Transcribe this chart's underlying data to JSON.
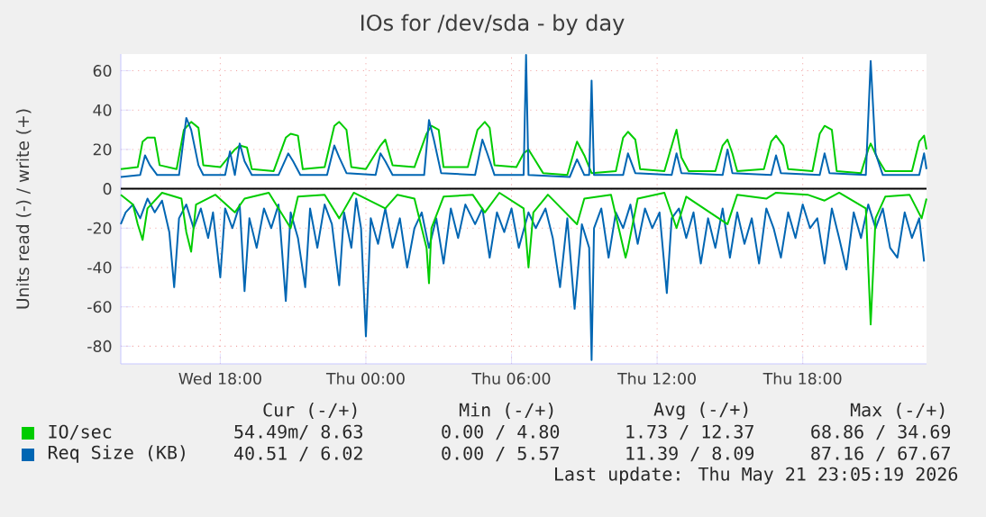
{
  "chart_data": {
    "type": "line",
    "title": "IOs for /dev/sda - by day",
    "ylabel": "Units read (-) / write (+)",
    "xlim": [
      "2026-05-20T13:54",
      "2026-05-21T23:06"
    ],
    "ylim": [
      -89,
      68.5
    ],
    "xticks": [
      {
        "value": "2026-05-20T18:00",
        "label": "Wed 18:00"
      },
      {
        "value": "2026-05-21T00:00",
        "label": "Thu 00:00"
      },
      {
        "value": "2026-05-21T06:00",
        "label": "Thu 06:00"
      },
      {
        "value": "2026-05-21T12:00",
        "label": "Thu 12:00"
      },
      {
        "value": "2026-05-21T18:00",
        "label": "Thu 18:00"
      }
    ],
    "yticks": [
      -80,
      -60,
      -40,
      -20,
      0,
      20,
      40,
      60
    ],
    "grid": true,
    "legend": "bottom",
    "marker": "none",
    "line_style": "solid",
    "ref_lines": [
      {
        "axis": "y",
        "value": 0,
        "color": "#000000"
      }
    ],
    "series": [
      {
        "color": "#0066b3",
        "x": [
          "2026-05-20T13:54",
          "2026-05-20T14:06",
          "2026-05-20T14:24",
          "2026-05-20T14:42",
          "2026-05-20T15:00",
          "2026-05-20T15:18",
          "2026-05-20T15:36",
          "2026-05-20T15:54",
          "2026-05-20T16:06",
          "2026-05-20T16:18",
          "2026-05-20T16:36",
          "2026-05-20T16:54",
          "2026-05-20T17:12",
          "2026-05-20T17:30",
          "2026-05-20T17:42",
          "2026-05-20T18:00",
          "2026-05-20T18:12",
          "2026-05-20T18:30",
          "2026-05-20T18:48",
          "2026-05-20T19:00",
          "2026-05-20T19:12",
          "2026-05-20T19:30",
          "2026-05-20T19:48",
          "2026-05-20T20:06",
          "2026-05-20T20:24",
          "2026-05-20T20:42",
          "2026-05-20T20:54",
          "2026-05-20T21:12",
          "2026-05-20T21:30",
          "2026-05-20T21:42",
          "2026-05-20T22:00",
          "2026-05-20T22:18",
          "2026-05-20T22:36",
          "2026-05-20T22:54",
          "2026-05-20T23:06",
          "2026-05-20T23:24",
          "2026-05-20T23:36",
          "2026-05-20T23:48",
          "2026-05-21T00:00",
          "2026-05-21T00:12",
          "2026-05-21T00:30",
          "2026-05-21T00:48",
          "2026-05-21T01:06",
          "2026-05-21T01:24",
          "2026-05-21T01:42",
          "2026-05-21T02:00",
          "2026-05-21T02:18",
          "2026-05-21T02:36",
          "2026-05-21T02:54",
          "2026-05-21T03:12",
          "2026-05-21T03:30",
          "2026-05-21T03:48",
          "2026-05-21T04:06",
          "2026-05-21T04:30",
          "2026-05-21T04:48",
          "2026-05-21T05:06",
          "2026-05-21T05:24",
          "2026-05-21T05:42",
          "2026-05-21T06:00",
          "2026-05-21T06:18",
          "2026-05-21T06:42",
          "2026-05-21T07:00",
          "2026-05-21T07:24",
          "2026-05-21T07:42",
          "2026-05-21T08:00",
          "2026-05-21T08:18",
          "2026-05-21T08:36",
          "2026-05-21T08:54",
          "2026-05-21T09:12",
          "2026-05-21T09:18",
          "2026-05-21T09:24",
          "2026-05-21T09:42",
          "2026-05-21T10:00",
          "2026-05-21T10:18",
          "2026-05-21T10:36",
          "2026-05-21T10:54",
          "2026-05-21T11:12",
          "2026-05-21T11:30",
          "2026-05-21T11:48",
          "2026-05-21T12:06",
          "2026-05-21T12:24",
          "2026-05-21T12:36",
          "2026-05-21T12:54",
          "2026-05-21T13:12",
          "2026-05-21T13:30",
          "2026-05-21T13:48",
          "2026-05-21T14:06",
          "2026-05-21T14:24",
          "2026-05-21T14:42",
          "2026-05-21T15:00",
          "2026-05-21T15:18",
          "2026-05-21T15:36",
          "2026-05-21T15:54",
          "2026-05-21T16:12",
          "2026-05-21T16:30",
          "2026-05-21T16:48",
          "2026-05-21T17:06",
          "2026-05-21T17:24",
          "2026-05-21T17:42",
          "2026-05-21T18:00",
          "2026-05-21T18:18",
          "2026-05-21T18:36",
          "2026-05-21T18:54",
          "2026-05-21T19:12",
          "2026-05-21T19:30",
          "2026-05-21T19:48",
          "2026-05-21T20:06",
          "2026-05-21T20:24",
          "2026-05-21T20:42",
          "2026-05-21T21:00",
          "2026-05-21T21:18",
          "2026-05-21T21:36",
          "2026-05-21T21:54",
          "2026-05-21T22:12",
          "2026-05-21T22:30",
          "2026-05-21T22:48",
          "2026-05-21T23:00"
        ],
        "values": [
          -18,
          -12,
          -8,
          -15,
          -5,
          -12,
          -6,
          -22,
          -50,
          -15,
          -8,
          -20,
          -10,
          -25,
          -12,
          -45,
          -10,
          -20,
          -8,
          -52,
          -15,
          -30,
          -10,
          -20,
          -8,
          -57,
          -12,
          -25,
          -50,
          -10,
          -30,
          -8,
          -18,
          -49,
          -12,
          -30,
          -5,
          -20,
          -75,
          -15,
          -28,
          -10,
          -30,
          -15,
          -40,
          -20,
          -12,
          -30,
          -15,
          -38,
          -10,
          -25,
          -8,
          -18,
          -10,
          -35,
          -12,
          -22,
          -10,
          -30,
          -12,
          -20,
          -10,
          -25,
          -50,
          -15,
          -61,
          -18,
          -30,
          -87,
          -20,
          -10,
          -35,
          -12,
          -20,
          -8,
          -28,
          -10,
          -20,
          -12,
          -53,
          -15,
          -10,
          -25,
          -12,
          -38,
          -15,
          -30,
          -10,
          -35,
          -12,
          -28,
          -15,
          -38,
          -10,
          -20,
          -35,
          -12,
          -25,
          -8,
          -20,
          -15,
          -38,
          -10,
          -25,
          -41,
          -12,
          -25,
          -8,
          -20,
          -10,
          -30,
          -35,
          -12,
          -25,
          -15,
          -37
        ]
      },
      {
        "color": "#00cc00",
        "x": [
          "2026-05-20T13:54",
          "2026-05-20T14:24",
          "2026-05-20T14:36",
          "2026-05-20T14:48",
          "2026-05-20T15:00",
          "2026-05-20T15:36",
          "2026-05-20T16:24",
          "2026-05-20T16:36",
          "2026-05-20T16:48",
          "2026-05-20T17:00",
          "2026-05-20T17:48",
          "2026-05-20T18:36",
          "2026-05-20T19:00",
          "2026-05-20T20:00",
          "2026-05-20T20:54",
          "2026-05-20T21:12",
          "2026-05-20T22:18",
          "2026-05-20T22:54",
          "2026-05-20T23:30",
          "2026-05-21T00:48",
          "2026-05-21T01:18",
          "2026-05-21T02:00",
          "2026-05-21T02:30",
          "2026-05-21T02:36",
          "2026-05-21T02:42",
          "2026-05-21T03:12",
          "2026-05-21T04:24",
          "2026-05-21T04:54",
          "2026-05-21T05:30",
          "2026-05-21T06:30",
          "2026-05-21T06:42",
          "2026-05-21T06:54",
          "2026-05-21T07:30",
          "2026-05-21T08:42",
          "2026-05-21T09:00",
          "2026-05-21T10:06",
          "2026-05-21T10:42",
          "2026-05-21T10:48",
          "2026-05-21T11:12",
          "2026-05-21T12:18",
          "2026-05-21T12:48",
          "2026-05-21T13:12",
          "2026-05-21T14:54",
          "2026-05-21T15:18",
          "2026-05-21T16:30",
          "2026-05-21T16:54",
          "2026-05-21T18:12",
          "2026-05-21T18:54",
          "2026-05-21T19:30",
          "2026-05-21T20:36",
          "2026-05-21T20:48",
          "2026-05-21T21:00",
          "2026-05-21T21:24",
          "2026-05-21T22:24",
          "2026-05-21T22:54",
          "2026-05-21T23:06"
        ],
        "values": [
          -3,
          -8,
          -18,
          -26,
          -10,
          -2,
          -5,
          -22,
          -32,
          -8,
          -3,
          -12,
          -5,
          -2,
          -20,
          -4,
          -3,
          -15,
          -2,
          -10,
          -3,
          -5,
          -30,
          -48,
          -20,
          -4,
          -3,
          -12,
          -2,
          -10,
          -40,
          -12,
          -3,
          -18,
          -5,
          -3,
          -35,
          -30,
          -5,
          -2,
          -20,
          -4,
          -18,
          -3,
          -5,
          -2,
          -3,
          -6,
          -2,
          -10,
          -69,
          -15,
          -4,
          -3,
          -15,
          -5
        ]
      },
      {
        "name": "IO/sec",
        "color": "#00cc00",
        "x": [
          "2026-05-20T13:54",
          "2026-05-20T14:36",
          "2026-05-20T14:48",
          "2026-05-20T15:00",
          "2026-05-20T15:18",
          "2026-05-20T15:30",
          "2026-05-20T16:12",
          "2026-05-20T16:30",
          "2026-05-20T16:48",
          "2026-05-20T17:06",
          "2026-05-20T17:18",
          "2026-05-20T18:00",
          "2026-05-20T18:36",
          "2026-05-20T18:48",
          "2026-05-20T19:06",
          "2026-05-20T19:18",
          "2026-05-20T20:12",
          "2026-05-20T20:42",
          "2026-05-20T20:54",
          "2026-05-20T21:12",
          "2026-05-20T21:24",
          "2026-05-20T22:18",
          "2026-05-20T22:42",
          "2026-05-20T22:54",
          "2026-05-20T23:12",
          "2026-05-20T23:24",
          "2026-05-21T00:00",
          "2026-05-21T00:36",
          "2026-05-21T00:48",
          "2026-05-21T01:06",
          "2026-05-21T02:00",
          "2026-05-21T02:30",
          "2026-05-21T02:42",
          "2026-05-21T03:00",
          "2026-05-21T03:12",
          "2026-05-21T04:12",
          "2026-05-21T04:36",
          "2026-05-21T04:54",
          "2026-05-21T05:06",
          "2026-05-21T05:18",
          "2026-05-21T06:12",
          "2026-05-21T06:30",
          "2026-05-21T06:42",
          "2026-05-21T07:00",
          "2026-05-21T07:18",
          "2026-05-21T08:18",
          "2026-05-21T08:36",
          "2026-05-21T08:42",
          "2026-05-21T09:00",
          "2026-05-21T09:18",
          "2026-05-21T10:18",
          "2026-05-21T10:36",
          "2026-05-21T10:48",
          "2026-05-21T11:06",
          "2026-05-21T11:18",
          "2026-05-21T12:18",
          "2026-05-21T12:42",
          "2026-05-21T12:48",
          "2026-05-21T13:00",
          "2026-05-21T13:18",
          "2026-05-21T14:24",
          "2026-05-21T14:42",
          "2026-05-21T14:54",
          "2026-05-21T15:06",
          "2026-05-21T15:18",
          "2026-05-21T16:24",
          "2026-05-21T16:42",
          "2026-05-21T16:54",
          "2026-05-21T17:12",
          "2026-05-21T17:24",
          "2026-05-21T18:24",
          "2026-05-21T18:42",
          "2026-05-21T18:54",
          "2026-05-21T19:12",
          "2026-05-21T19:24",
          "2026-05-21T20:24",
          "2026-05-21T20:42",
          "2026-05-21T20:48",
          "2026-05-21T21:06",
          "2026-05-21T21:24",
          "2026-05-21T22:30",
          "2026-05-21T22:48",
          "2026-05-21T23:00",
          "2026-05-21T23:06"
        ],
        "values": [
          10,
          11,
          24,
          26,
          26,
          12,
          10,
          30,
          34,
          31,
          12,
          11,
          20,
          22,
          21,
          10,
          9,
          26,
          28,
          27,
          10,
          11,
          32,
          34,
          30,
          11,
          10,
          22,
          25,
          12,
          11,
          28,
          32,
          30,
          11,
          11,
          30,
          34,
          31,
          12,
          11,
          18,
          20,
          14,
          8,
          7,
          20,
          24,
          17,
          8,
          9,
          26,
          29,
          25,
          10,
          9,
          26,
          30,
          16,
          9,
          9,
          22,
          25,
          18,
          9,
          10,
          24,
          27,
          22,
          10,
          9,
          28,
          32,
          30,
          9,
          8,
          20,
          23,
          15,
          9,
          9,
          24,
          27,
          20
        ]
      },
      {
        "name": "Req Size (KB)",
        "color": "#0066b3",
        "x": [
          "2026-05-20T13:54",
          "2026-05-20T14:42",
          "2026-05-20T14:54",
          "2026-05-20T15:06",
          "2026-05-20T15:24",
          "2026-05-20T16:18",
          "2026-05-20T16:36",
          "2026-05-20T16:48",
          "2026-05-20T17:06",
          "2026-05-20T17:18",
          "2026-05-20T18:12",
          "2026-05-20T18:24",
          "2026-05-20T18:36",
          "2026-05-20T18:48",
          "2026-05-20T19:00",
          "2026-05-20T19:18",
          "2026-05-20T20:24",
          "2026-05-20T20:48",
          "2026-05-20T21:00",
          "2026-05-20T21:18",
          "2026-05-20T22:24",
          "2026-05-20T22:42",
          "2026-05-20T22:54",
          "2026-05-20T23:12",
          "2026-05-21T00:24",
          "2026-05-21T00:36",
          "2026-05-21T00:48",
          "2026-05-21T01:06",
          "2026-05-21T02:24",
          "2026-05-21T02:36",
          "2026-05-21T02:48",
          "2026-05-21T03:06",
          "2026-05-21T04:30",
          "2026-05-21T04:48",
          "2026-05-21T05:00",
          "2026-05-21T05:18",
          "2026-05-21T06:30",
          "2026-05-21T06:36",
          "2026-05-21T06:42",
          "2026-05-21T08:24",
          "2026-05-21T08:42",
          "2026-05-21T09:00",
          "2026-05-21T09:12",
          "2026-05-21T09:18",
          "2026-05-21T09:24",
          "2026-05-21T10:36",
          "2026-05-21T10:48",
          "2026-05-21T11:06",
          "2026-05-21T12:36",
          "2026-05-21T12:48",
          "2026-05-21T13:00",
          "2026-05-21T14:42",
          "2026-05-21T14:54",
          "2026-05-21T15:06",
          "2026-05-21T16:42",
          "2026-05-21T16:54",
          "2026-05-21T17:06",
          "2026-05-21T18:42",
          "2026-05-21T18:54",
          "2026-05-21T19:06",
          "2026-05-21T20:36",
          "2026-05-21T20:48",
          "2026-05-21T21:00",
          "2026-05-21T21:18",
          "2026-05-21T22:48",
          "2026-05-21T23:00",
          "2026-05-21T23:06"
        ],
        "values": [
          6,
          7,
          17,
          12,
          7,
          7,
          36,
          30,
          12,
          7,
          7,
          19,
          7,
          23,
          14,
          7,
          7,
          18,
          14,
          7,
          7,
          22,
          16,
          8,
          7,
          18,
          14,
          7,
          7,
          35,
          25,
          8,
          7,
          25,
          18,
          7,
          7,
          68,
          7,
          6,
          15,
          7,
          7,
          55,
          7,
          7,
          18,
          8,
          7,
          18,
          8,
          7,
          20,
          8,
          7,
          17,
          8,
          7,
          18,
          8,
          7,
          65,
          18,
          7,
          7,
          18,
          10
        ]
      }
    ],
    "annotations": [
      "Cur (-/+)",
      "Min (-/+)",
      "Avg (-/+)",
      "Max (-/+)",
      "54.49m/  8.63",
      "0.00 /  4.80",
      "1.73 / 12.37",
      "68.86 / 34.69",
      "40.51 /  6.02",
      "0.00 /  5.57",
      "11.39 /  8.09",
      "87.16 / 67.67",
      "Last update: Thu May 21 23:05:19 2026"
    ]
  }
}
